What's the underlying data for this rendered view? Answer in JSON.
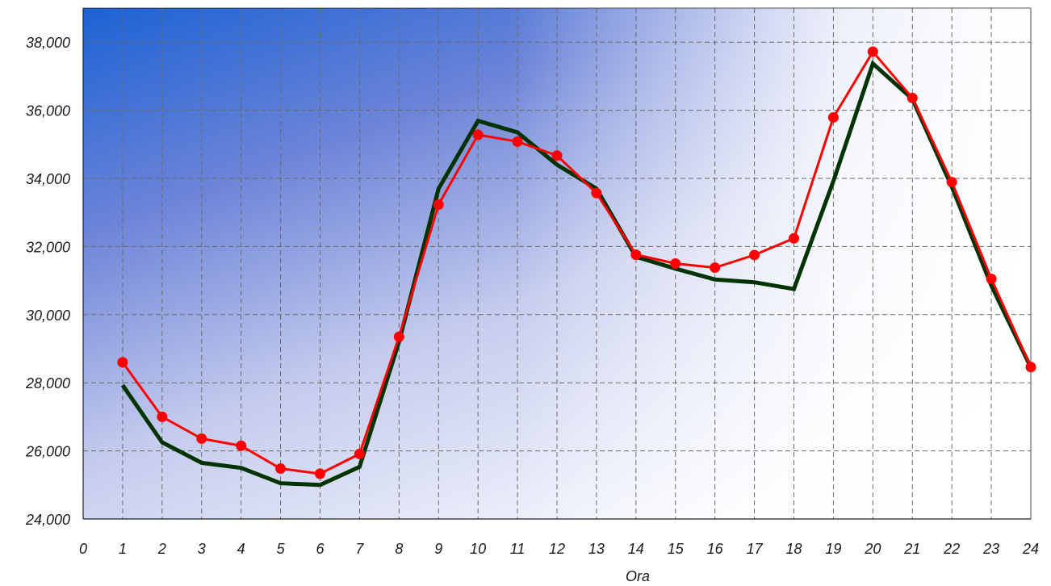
{
  "chart_data": {
    "type": "line",
    "title": "",
    "xlabel": "Ora",
    "ylabel": "",
    "xlim": [
      0,
      24
    ],
    "ylim": [
      24000,
      39000
    ],
    "x_ticks": [
      0,
      1,
      2,
      3,
      4,
      5,
      6,
      7,
      8,
      9,
      10,
      11,
      12,
      13,
      14,
      15,
      16,
      17,
      18,
      19,
      20,
      21,
      22,
      23,
      24
    ],
    "y_ticks": [
      24000,
      26000,
      28000,
      30000,
      32000,
      34000,
      36000,
      38000
    ],
    "y_tick_labels": [
      "24,000",
      "26,000",
      "28,000",
      "30,000",
      "32,000",
      "34,000",
      "36,000",
      "38,000"
    ],
    "grid": true,
    "legend": "none",
    "x": [
      1,
      2,
      3,
      4,
      5,
      6,
      7,
      8,
      9,
      10,
      11,
      12,
      13,
      14,
      15,
      16,
      17,
      18,
      19,
      20,
      21,
      22,
      23,
      24
    ],
    "series": [
      {
        "color": "#003300",
        "markers": false,
        "values": [
          27930,
          26250,
          25650,
          25500,
          25050,
          25000,
          25530,
          29200,
          33700,
          35690,
          35350,
          34400,
          33700,
          31700,
          31350,
          31030,
          30950,
          30750,
          33920,
          37370,
          36330,
          33750,
          30850,
          28450
        ]
      },
      {
        "color": "#ff0000",
        "markers": true,
        "values": [
          28600,
          27000,
          26360,
          26150,
          25480,
          25330,
          25910,
          29350,
          33230,
          35280,
          35080,
          34670,
          33570,
          31760,
          31500,
          31380,
          31750,
          32240,
          35790,
          37720,
          36360,
          33890,
          31050,
          28460
        ]
      }
    ]
  }
}
